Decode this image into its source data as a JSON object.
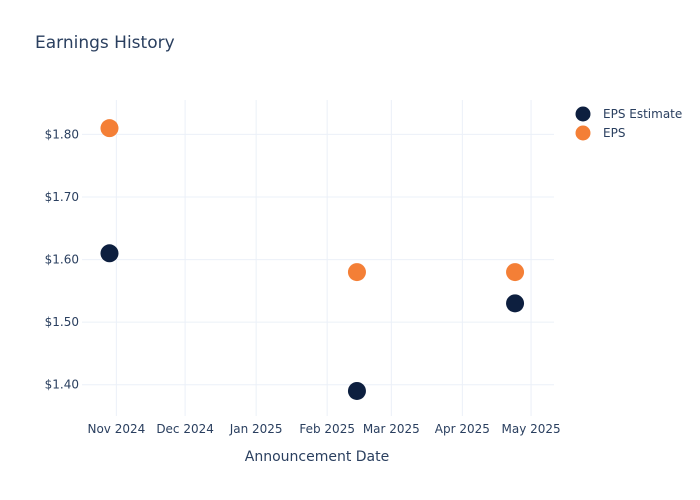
{
  "chart_data": {
    "type": "scatter",
    "title": "Earnings History",
    "xlabel": "Announcement Date",
    "ylabel": "",
    "x_ticks": [
      "Nov 2024",
      "Dec 2024",
      "Jan 2025",
      "Feb 2025",
      "Mar 2025",
      "Apr 2025",
      "May 2025"
    ],
    "x_tick_dates": [
      "2024-11-01",
      "2024-12-01",
      "2025-01-01",
      "2025-02-01",
      "2025-03-01",
      "2025-04-01",
      "2025-05-01"
    ],
    "y_ticks": [
      "$1.40",
      "$1.50",
      "$1.60",
      "$1.70",
      "$1.80"
    ],
    "y_tick_values": [
      1.4,
      1.5,
      1.6,
      1.7,
      1.8
    ],
    "xlim": [
      "2024-10-17",
      "2025-05-11"
    ],
    "ylim": [
      1.35,
      1.855
    ],
    "grid": true,
    "legend_position": "top-right",
    "series": [
      {
        "name": "EPS Estimate",
        "color": "#0d1f3f",
        "points": [
          {
            "x": "2024-10-29",
            "y": 1.61
          },
          {
            "x": "2025-02-14",
            "y": 1.39
          },
          {
            "x": "2025-04-24",
            "y": 1.53
          }
        ]
      },
      {
        "name": "EPS",
        "color": "#f47f36",
        "points": [
          {
            "x": "2024-10-29",
            "y": 1.81
          },
          {
            "x": "2025-02-14",
            "y": 1.58
          },
          {
            "x": "2025-04-24",
            "y": 1.58
          }
        ]
      }
    ]
  }
}
